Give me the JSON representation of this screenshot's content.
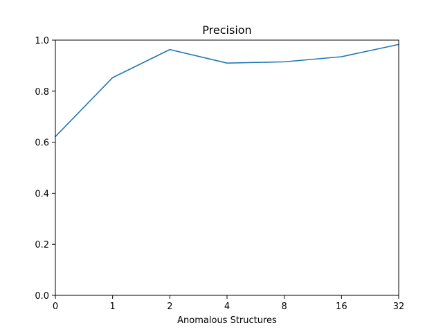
{
  "chart_data": {
    "type": "line",
    "title": "Precision",
    "xlabel": "Anomalous Structures",
    "ylabel": "",
    "categories": [
      "0",
      "1",
      "2",
      "4",
      "8",
      "16",
      "32"
    ],
    "series": [
      {
        "values": [
          0.622,
          0.853,
          0.963,
          0.91,
          0.915,
          0.935,
          0.983
        ]
      }
    ],
    "ylim": [
      0,
      1.0
    ],
    "yticks": [
      "0.0",
      "0.2",
      "0.4",
      "0.6",
      "0.8",
      "1.0"
    ],
    "grid": false,
    "line_color": "#1f77b4"
  }
}
